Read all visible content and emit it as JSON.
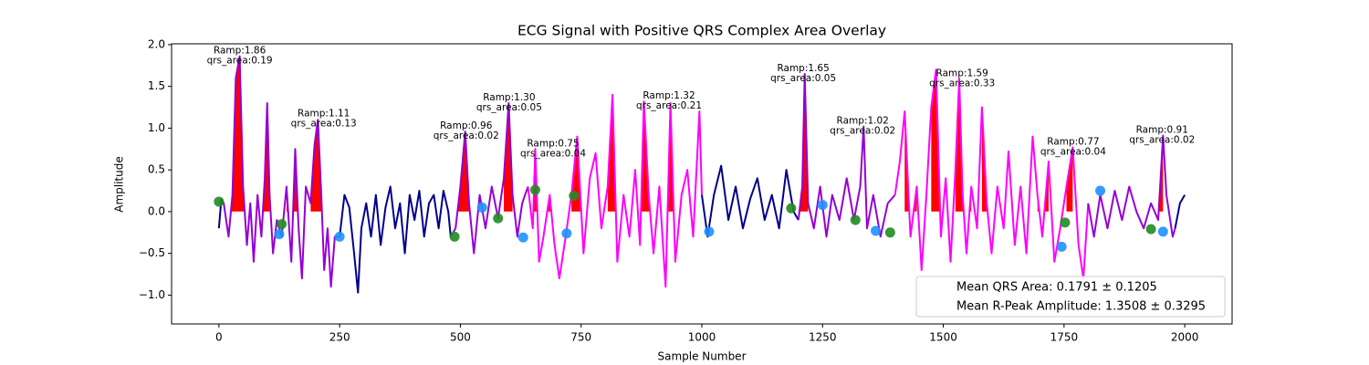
{
  "chart_data": {
    "type": "line",
    "title": "ECG Signal with Positive QRS Complex Area Overlay",
    "xlabel": "Sample Number",
    "ylabel": "Amplitude",
    "xlim": [
      -98,
      2098
    ],
    "ylim": [
      -1.345,
      2.01
    ],
    "xticks": [
      0,
      250,
      500,
      750,
      1000,
      1250,
      1500,
      1750,
      2000
    ],
    "yticks": [
      {
        "value": -1,
        "label": "−1.0"
      },
      {
        "value": -0.5,
        "label": "−0.5"
      },
      {
        "value": 0,
        "label": "0.0"
      },
      {
        "value": 0.5,
        "label": "0.5"
      },
      {
        "value": 1,
        "label": "1.0"
      },
      {
        "value": 1.5,
        "label": "1.5"
      },
      {
        "value": 2,
        "label": "2.0"
      }
    ],
    "series": [
      {
        "color": "#00008b",
        "x": [
          0,
          5,
          10
        ],
        "values": [
          -0.2,
          0.15,
          0.1
        ]
      },
      {
        "color": "#9400d3",
        "x": [
          10,
          20,
          28,
          35,
          43,
          50,
          58,
          65,
          72,
          80,
          88,
          95,
          100,
          105,
          112,
          120,
          130,
          140,
          150,
          158,
          165,
          172,
          180,
          190,
          198,
          205,
          212,
          218,
          225,
          232,
          240,
          250
        ],
        "values": [
          0.1,
          -0.3,
          0.2,
          1.6,
          1.86,
          0.3,
          -0.4,
          0.1,
          -0.6,
          0.2,
          -0.3,
          0.4,
          1.3,
          0.2,
          -0.5,
          -0.1,
          -0.3,
          0.3,
          -0.6,
          0.75,
          -0.2,
          -0.8,
          0.3,
          0.1,
          0.8,
          1.1,
          0.2,
          -0.7,
          -0.2,
          -0.9,
          -0.3,
          -0.3
        ]
      },
      {
        "color": "#00008b",
        "x": [
          250,
          260,
          270,
          280,
          288,
          295,
          305,
          315,
          325,
          335,
          345,
          355,
          365,
          375,
          385,
          395,
          405,
          415,
          425,
          435,
          445,
          455,
          465,
          475,
          480
        ],
        "values": [
          -0.3,
          0.2,
          0.05,
          -0.5,
          -0.97,
          -0.2,
          0.1,
          -0.3,
          0.2,
          -0.4,
          0.05,
          0.3,
          -0.2,
          0.1,
          -0.5,
          0.2,
          -0.1,
          0.25,
          -0.3,
          0.1,
          0.2,
          -0.2,
          0.25,
          0.0,
          -0.3
        ]
      },
      {
        "color": "#9400d3",
        "x": [
          480,
          490,
          500,
          510,
          518,
          528,
          540,
          552,
          565,
          578,
          590,
          600,
          608,
          618,
          628,
          640
        ],
        "values": [
          -0.3,
          -0.2,
          0.3,
          0.96,
          0.1,
          -0.5,
          0.2,
          -0.2,
          0.3,
          -0.08,
          0.4,
          1.3,
          0.2,
          -0.3,
          0.1,
          0.3
        ]
      },
      {
        "color": "#ff00ff",
        "x": [
          640,
          650,
          655,
          663,
          672,
          685,
          695,
          705,
          718,
          730,
          742,
          755,
          768,
          780,
          792,
          805,
          815,
          825,
          838,
          850,
          862,
          872,
          880,
          890,
          900,
          912,
          925,
          935,
          945,
          958,
          970,
          982,
          995,
          1000
        ],
        "values": [
          0.3,
          -0.2,
          0.75,
          -0.6,
          -0.3,
          0.2,
          -0.4,
          -0.8,
          -0.3,
          0.2,
          0.9,
          -0.5,
          0.4,
          0.7,
          -0.2,
          0.3,
          1.4,
          -0.6,
          0.2,
          -0.3,
          0.5,
          -0.4,
          1.32,
          0.2,
          -0.5,
          0.3,
          -0.9,
          1.3,
          -0.6,
          0.2,
          0.5,
          -0.3,
          1.2,
          0.2
        ]
      },
      {
        "color": "#00008b",
        "x": [
          1000,
          1012,
          1025,
          1040,
          1055,
          1070,
          1085,
          1100,
          1115,
          1130,
          1145,
          1160,
          1175,
          1190,
          1200
        ],
        "values": [
          0.2,
          -0.3,
          0.2,
          0.55,
          -0.1,
          0.3,
          -0.2,
          0.15,
          0.4,
          -0.1,
          0.2,
          -0.2,
          0.5,
          0.0,
          -0.1
        ]
      },
      {
        "color": "#9400d3",
        "x": [
          1200,
          1208,
          1213,
          1220,
          1232,
          1245,
          1258,
          1270,
          1285,
          1300,
          1315,
          1328,
          1335,
          1342,
          1355,
          1370,
          1385,
          1400
        ],
        "values": [
          -0.1,
          0.3,
          1.65,
          0.1,
          -0.2,
          0.3,
          -0.3,
          0.2,
          -0.1,
          0.4,
          -0.1,
          0.3,
          1.02,
          -0.2,
          0.2,
          -0.3,
          0.1,
          0.2
        ]
      },
      {
        "color": "#ff00ff",
        "x": [
          1400,
          1410,
          1420,
          1432,
          1445,
          1455,
          1465,
          1475,
          1485,
          1495,
          1505,
          1515,
          1525,
          1533,
          1540,
          1548,
          1558,
          1570,
          1580,
          1590,
          1600,
          1612,
          1625,
          1635,
          1648,
          1660,
          1672,
          1685,
          1695,
          1705,
          1718,
          1730,
          1742,
          1755,
          1768,
          1780,
          1790,
          1800
        ],
        "values": [
          0.2,
          0.6,
          1.2,
          -0.3,
          0.3,
          -0.7,
          0.2,
          1.25,
          1.7,
          -0.3,
          0.4,
          -0.6,
          0.5,
          1.59,
          0.2,
          -0.5,
          0.3,
          -0.2,
          1.25,
          0.1,
          -0.5,
          0.3,
          -0.2,
          0.72,
          -0.4,
          0.3,
          -0.5,
          0.9,
          0.2,
          -0.3,
          0.6,
          -0.6,
          -0.2,
          0.3,
          0.77,
          -0.4,
          -0.8,
          0.1
        ]
      },
      {
        "color": "#9400d3",
        "x": [
          1800,
          1812,
          1825,
          1840,
          1855,
          1870,
          1885,
          1900,
          1915,
          1930,
          1945,
          1955,
          1962,
          1975,
          1980
        ],
        "values": [
          0.1,
          -0.3,
          0.2,
          -0.2,
          0.25,
          -0.1,
          0.3,
          0.0,
          -0.2,
          0.1,
          -0.1,
          0.91,
          0.2,
          -0.3,
          -0.2
        ]
      },
      {
        "color": "#00008b",
        "x": [
          1980,
          1990,
          2000
        ],
        "values": [
          -0.2,
          0.1,
          0.2
        ]
      }
    ],
    "area_color": "#ff0000",
    "qrs_regions": [
      [
        15,
        60
      ],
      [
        85,
        105
      ],
      [
        140,
        175
      ],
      [
        185,
        220
      ],
      [
        490,
        530
      ],
      [
        590,
        610
      ],
      [
        650,
        700
      ],
      [
        720,
        760
      ],
      [
        800,
        830
      ],
      [
        870,
        900
      ],
      [
        925,
        950
      ],
      [
        1200,
        1225
      ],
      [
        1420,
        1450
      ],
      [
        1470,
        1500
      ],
      [
        1525,
        1560
      ],
      [
        1580,
        1610
      ],
      [
        1690,
        1720
      ],
      [
        1745,
        1775
      ],
      [
        1940,
        1960
      ]
    ],
    "markers": [
      {
        "color": "#228b22",
        "x": [
          0,
          130,
          488,
          578,
          655,
          735,
          1185,
          1318,
          1390,
          1752,
          1930
        ],
        "values": [
          0.12,
          -0.15,
          -0.3,
          -0.08,
          0.26,
          0.19,
          0.04,
          -0.1,
          -0.25,
          -0.13,
          -0.21
        ]
      },
      {
        "color": "#1e90ff",
        "x": [
          125,
          250,
          545,
          630,
          720,
          1015,
          1250,
          1360,
          1745,
          1825,
          1955
        ],
        "values": [
          -0.27,
          -0.3,
          0.05,
          -0.31,
          -0.26,
          -0.24,
          0.08,
          -0.23,
          -0.42,
          0.25,
          -0.24
        ]
      }
    ],
    "annotations": [
      {
        "x": 43,
        "y": 1.86,
        "text": [
          "Ramp:1.86",
          "qrs_area:0.19"
        ]
      },
      {
        "x": 217,
        "y": 1.11,
        "text": [
          "Ramp:1.11",
          "qrs_area:0.13"
        ]
      },
      {
        "x": 512,
        "y": 0.96,
        "text": [
          "Ramp:0.96",
          "qrs_area:0.02"
        ]
      },
      {
        "x": 601,
        "y": 1.3,
        "text": [
          "Ramp:1.30",
          "qrs_area:0.05"
        ]
      },
      {
        "x": 692,
        "y": 0.75,
        "text": [
          "Ramp:0.75",
          "qrs_area:0.04"
        ]
      },
      {
        "x": 932,
        "y": 1.32,
        "text": [
          "Ramp:1.32",
          "qrs_area:0.21"
        ]
      },
      {
        "x": 1210,
        "y": 1.65,
        "text": [
          "Ramp:1.65",
          "qrs_area:0.05"
        ]
      },
      {
        "x": 1333,
        "y": 1.02,
        "text": [
          "Ramp:1.02",
          "qrs_area:0.02"
        ]
      },
      {
        "x": 1539,
        "y": 1.59,
        "text": [
          "Ramp:1.59",
          "qrs_area:0.33"
        ]
      },
      {
        "x": 1769,
        "y": 0.77,
        "text": [
          "Ramp:0.77",
          "qrs_area:0.04"
        ]
      },
      {
        "x": 1953,
        "y": 0.91,
        "text": [
          "Ramp:0.91",
          "qrs_area:0.02"
        ]
      }
    ],
    "legend": {
      "position": "lower right",
      "entries": [
        "Mean QRS Area: 0.1791 ± 0.1205",
        "Mean R-Peak Amplitude: 1.3508 ± 0.3295"
      ]
    }
  }
}
